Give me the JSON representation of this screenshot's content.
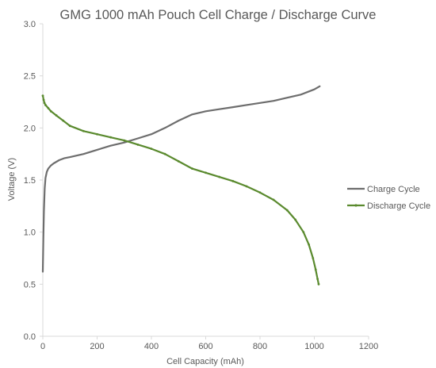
{
  "chart_data": {
    "type": "line",
    "title": "GMG 1000 mAh Pouch Cell Charge / Discharge Curve",
    "xlabel": "Cell Capacity (mAh)",
    "ylabel": "Voltage (V)",
    "xlim": [
      0,
      1200
    ],
    "ylim": [
      0,
      3.0
    ],
    "xticks": [
      0,
      200,
      400,
      600,
      800,
      1000,
      1200
    ],
    "yticks": [
      0.0,
      0.5,
      1.0,
      1.5,
      2.0,
      2.5,
      3.0
    ],
    "xtick_labels": [
      "0",
      "200",
      "400",
      "600",
      "800",
      "1000",
      "1200"
    ],
    "ytick_labels": [
      "0.0",
      "0.5",
      "1.0",
      "1.5",
      "2.0",
      "2.5",
      "3.0"
    ],
    "grid": false,
    "legend_position": "right",
    "series": [
      {
        "name": "Charge Cycle",
        "color": "#6d6d6d",
        "marker": "none",
        "x": [
          0,
          2,
          4,
          7,
          10,
          15,
          20,
          30,
          40,
          60,
          80,
          100,
          150,
          200,
          250,
          300,
          350,
          400,
          450,
          500,
          550,
          600,
          650,
          700,
          750,
          800,
          850,
          900,
          950,
          1000,
          1020
        ],
        "y": [
          0.62,
          0.95,
          1.2,
          1.42,
          1.52,
          1.58,
          1.61,
          1.64,
          1.66,
          1.69,
          1.71,
          1.72,
          1.75,
          1.79,
          1.83,
          1.86,
          1.9,
          1.94,
          2.0,
          2.07,
          2.13,
          2.16,
          2.18,
          2.2,
          2.22,
          2.24,
          2.26,
          2.29,
          2.32,
          2.37,
          2.4
        ]
      },
      {
        "name": "Discharge Cycle",
        "color": "#5a8a2e",
        "marker": "small-dot",
        "x": [
          0,
          3,
          6,
          10,
          20,
          30,
          50,
          75,
          100,
          150,
          200,
          250,
          300,
          350,
          400,
          450,
          500,
          550,
          600,
          650,
          700,
          750,
          800,
          850,
          900,
          930,
          960,
          980,
          995,
          1005,
          1012,
          1016
        ],
        "y": [
          2.31,
          2.27,
          2.24,
          2.22,
          2.19,
          2.16,
          2.12,
          2.07,
          2.02,
          1.97,
          1.94,
          1.91,
          1.88,
          1.84,
          1.8,
          1.75,
          1.68,
          1.61,
          1.57,
          1.53,
          1.49,
          1.44,
          1.38,
          1.31,
          1.21,
          1.12,
          1.0,
          0.88,
          0.75,
          0.64,
          0.55,
          0.5
        ]
      }
    ]
  }
}
